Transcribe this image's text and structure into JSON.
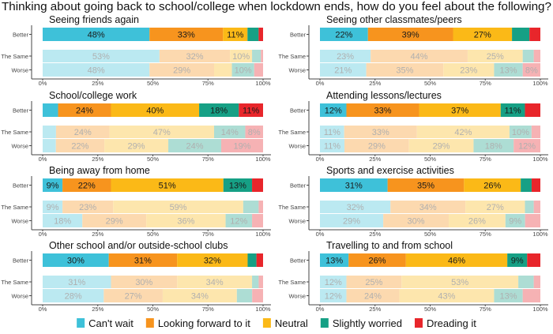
{
  "chart_data": {
    "type": "bar",
    "orientation": "horizontal",
    "stacked": "percent",
    "title": "Thinking about going back to school/college when lockdown ends, how do you feel about the following?",
    "rows": [
      "Better",
      "The Same",
      "Worse"
    ],
    "x_ticks": [
      "0%",
      "25%",
      "50%",
      "75%",
      "100%"
    ],
    "xlim": [
      0,
      100
    ],
    "grid": false,
    "legend_position": "bottom",
    "series": [
      {
        "name": "Can't wait",
        "color": "#3EC1D9"
      },
      {
        "name": "Looking forward to it",
        "color": "#F7941E"
      },
      {
        "name": "Neutral",
        "color": "#FBB917"
      },
      {
        "name": "Slightly worried",
        "color": "#16A085"
      },
      {
        "name": "Dreading it",
        "color": "#E8262B"
      }
    ],
    "panels": [
      {
        "title": "Seeing friends again",
        "values": [
          [
            48,
            33,
            11,
            5,
            2
          ],
          [
            53,
            32,
            10,
            4,
            1
          ],
          [
            48,
            29,
            8,
            10,
            4
          ]
        ],
        "labels": [
          [
            "48%",
            "33%",
            "11%",
            "",
            ""
          ],
          [
            "53%",
            "32%",
            "10%",
            "",
            ""
          ],
          [
            "48%",
            "29%",
            "",
            "10%",
            ""
          ]
        ]
      },
      {
        "title": "Seeing other classmates/peers",
        "values": [
          [
            22,
            39,
            27,
            8,
            5
          ],
          [
            23,
            44,
            25,
            5,
            3
          ],
          [
            21,
            35,
            23,
            13,
            8
          ]
        ],
        "labels": [
          [
            "22%",
            "39%",
            "27%",
            "",
            ""
          ],
          [
            "23%",
            "44%",
            "25%",
            "",
            ""
          ],
          [
            "21%",
            "35%",
            "23%",
            "13%",
            "8%"
          ]
        ]
      },
      {
        "title": "School/college work",
        "values": [
          [
            7,
            24,
            40,
            18,
            11
          ],
          [
            6,
            24,
            47,
            14,
            8
          ],
          [
            6,
            22,
            29,
            24,
            19
          ]
        ],
        "labels": [
          [
            "",
            "24%",
            "40%",
            "18%",
            "11%"
          ],
          [
            "",
            "24%",
            "47%",
            "14%",
            "8%"
          ],
          [
            "",
            "22%",
            "29%",
            "24%",
            "19%"
          ]
        ]
      },
      {
        "title": "Attending lessons/lectures",
        "values": [
          [
            12,
            33,
            37,
            11,
            7
          ],
          [
            11,
            33,
            42,
            10,
            4
          ],
          [
            11,
            29,
            29,
            18,
            12
          ]
        ],
        "labels": [
          [
            "12%",
            "33%",
            "37%",
            "11%",
            ""
          ],
          [
            "11%",
            "33%",
            "42%",
            "10%",
            ""
          ],
          [
            "11%",
            "29%",
            "29%",
            "18%",
            "12%"
          ]
        ]
      },
      {
        "title": "Being away from home",
        "values": [
          [
            9,
            22,
            51,
            13,
            5
          ],
          [
            9,
            23,
            59,
            7,
            2
          ],
          [
            18,
            29,
            36,
            12,
            5
          ]
        ],
        "labels": [
          [
            "9%",
            "22%",
            "51%",
            "13%",
            ""
          ],
          [
            "9%",
            "23%",
            "59%",
            "",
            ""
          ],
          [
            "18%",
            "29%",
            "36%",
            "12%",
            ""
          ]
        ]
      },
      {
        "title": "Sports and exercise activities",
        "values": [
          [
            31,
            35,
            26,
            5,
            4
          ],
          [
            32,
            34,
            27,
            4,
            3
          ],
          [
            29,
            30,
            26,
            9,
            7
          ]
        ],
        "labels": [
          [
            "31%",
            "35%",
            "26%",
            "",
            ""
          ],
          [
            "32%",
            "34%",
            "27%",
            "",
            ""
          ],
          [
            "29%",
            "30%",
            "26%",
            "9%",
            ""
          ]
        ]
      },
      {
        "title": "Other school and/or outside-school clubs",
        "values": [
          [
            30,
            31,
            32,
            4,
            3
          ],
          [
            31,
            30,
            34,
            3,
            2
          ],
          [
            28,
            27,
            34,
            7,
            5
          ]
        ],
        "labels": [
          [
            "30%",
            "31%",
            "32%",
            "",
            ""
          ],
          [
            "31%",
            "30%",
            "34%",
            "",
            ""
          ],
          [
            "28%",
            "27%",
            "34%",
            "",
            ""
          ]
        ]
      },
      {
        "title": "Travelling to and from school",
        "values": [
          [
            13,
            26,
            46,
            9,
            6
          ],
          [
            12,
            25,
            53,
            7,
            3
          ],
          [
            12,
            24,
            43,
            13,
            8
          ]
        ],
        "labels": [
          [
            "13%",
            "26%",
            "46%",
            "9%",
            ""
          ],
          [
            "12%",
            "25%",
            "53%",
            "",
            ""
          ],
          [
            "12%",
            "24%",
            "43%",
            "13%",
            ""
          ]
        ]
      }
    ]
  }
}
